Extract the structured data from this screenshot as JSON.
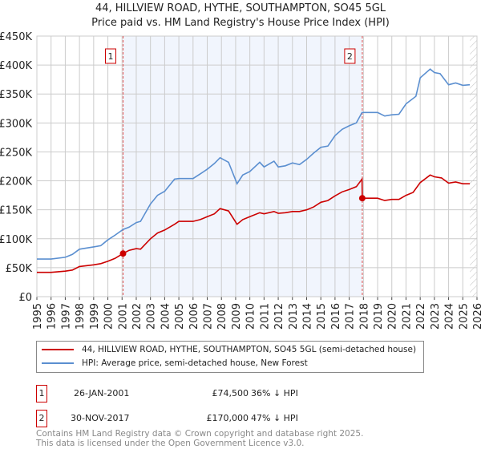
{
  "title_line1": "44, HILLVIEW ROAD, HYTHE, SOUTHAMPTON, SO45 5GL",
  "title_line2": "Price paid vs. HM Land Registry's House Price Index (HPI)",
  "chart_data": {
    "type": "line",
    "title": "44, HILLVIEW ROAD, HYTHE, SOUTHAMPTON, SO45 5GL — Price paid vs. HM Land Registry's House Price Index (HPI)",
    "xlim": [
      1995,
      2026
    ],
    "ylim": [
      0,
      450000
    ],
    "x_ticks": [
      "1995",
      "1996",
      "1997",
      "1998",
      "1999",
      "2000",
      "2001",
      "2002",
      "2003",
      "2004",
      "2005",
      "2006",
      "2007",
      "2008",
      "2009",
      "2010",
      "2011",
      "2012",
      "2013",
      "2014",
      "2015",
      "2016",
      "2017",
      "2018",
      "2019",
      "2020",
      "2021",
      "2022",
      "2023",
      "2024",
      "2025",
      "2026"
    ],
    "y_ticks": [
      {
        "v": 0,
        "label": "£0"
      },
      {
        "v": 50000,
        "label": "£50K"
      },
      {
        "v": 100000,
        "label": "£100K"
      },
      {
        "v": 150000,
        "label": "£150K"
      },
      {
        "v": 200000,
        "label": "£200K"
      },
      {
        "v": 250000,
        "label": "£250K"
      },
      {
        "v": 300000,
        "label": "£300K"
      },
      {
        "v": 350000,
        "label": "£350K"
      },
      {
        "v": 400000,
        "label": "£400K"
      },
      {
        "v": 450000,
        "label": "£450K"
      }
    ],
    "grid": true,
    "shaded_range": [
      2001.07,
      2017.92
    ],
    "forecast_hatch_from": 2025.5,
    "series": [
      {
        "name": "44, HILLVIEW ROAD, HYTHE, SOUTHAMPTON, SO45 5GL (semi-detached house)",
        "color": "#cc0000",
        "x": [
          1995,
          1996,
          1997,
          1997.5,
          1998,
          1999,
          1999.5,
          2000,
          2000.5,
          2001.07,
          2001.5,
          2002,
          2002.3,
          2003,
          2003.5,
          2004,
          2004.7,
          2005,
          2006,
          2006.5,
          2007,
          2007.5,
          2007.9,
          2008.5,
          2009.1,
          2009.5,
          2010,
          2010.7,
          2011,
          2011.7,
          2012,
          2012.5,
          2013,
          2013.5,
          2014,
          2014.5,
          2015,
          2015.5,
          2016,
          2016.5,
          2017,
          2017.5,
          2017.9,
          2017.92,
          2018,
          2019,
          2019.5,
          2020,
          2020.5,
          2021,
          2021.5,
          2022,
          2022.7,
          2023,
          2023.5,
          2024,
          2024.5,
          2025,
          2025.5
        ],
        "y": [
          42000,
          42000,
          44000,
          46000,
          52000,
          55000,
          57000,
          61000,
          66000,
          74500,
          80000,
          83000,
          82000,
          100000,
          110000,
          115000,
          125000,
          130000,
          130000,
          133000,
          138000,
          143000,
          152000,
          148000,
          125000,
          133000,
          138000,
          145000,
          143000,
          147000,
          144000,
          145000,
          147000,
          147000,
          150000,
          155000,
          163000,
          166000,
          174000,
          181000,
          185000,
          190000,
          203000,
          170000,
          170000,
          170000,
          166000,
          168000,
          168000,
          175000,
          180000,
          197000,
          210000,
          207000,
          205000,
          196000,
          198000,
          195000,
          195000
        ]
      },
      {
        "name": "HPI: Average price, semi-detached house, New Forest",
        "color": "#5b8fd0",
        "x": [
          1995,
          1996,
          1997,
          1997.5,
          1998,
          1999,
          1999.5,
          2000,
          2000.5,
          2001.07,
          2001.5,
          2002,
          2002.3,
          2003,
          2003.5,
          2004,
          2004.7,
          2005,
          2006,
          2006.5,
          2007,
          2007.5,
          2007.9,
          2008.5,
          2009.1,
          2009.5,
          2010,
          2010.7,
          2011,
          2011.7,
          2012,
          2012.5,
          2013,
          2013.5,
          2014,
          2014.5,
          2015,
          2015.5,
          2016,
          2016.5,
          2017,
          2017.5,
          2017.9,
          2018,
          2019,
          2019.5,
          2020,
          2020.5,
          2021,
          2021.7,
          2022,
          2022.7,
          2023,
          2023.4,
          2024,
          2024.5,
          2025,
          2025.5
        ],
        "y": [
          65000,
          65000,
          68000,
          73000,
          82000,
          86000,
          88000,
          98000,
          106000,
          116000,
          120000,
          128000,
          130000,
          160000,
          175000,
          182000,
          203000,
          204000,
          204000,
          212000,
          220000,
          230000,
          240000,
          232000,
          195000,
          210000,
          216000,
          232000,
          224000,
          234000,
          224000,
          226000,
          231000,
          228000,
          237000,
          248000,
          258000,
          260000,
          278000,
          289000,
          295000,
          300000,
          318000,
          318000,
          318000,
          312000,
          314000,
          315000,
          333000,
          346000,
          378000,
          393000,
          387000,
          385000,
          366000,
          369000,
          365000,
          366000
        ]
      }
    ],
    "annotations": [
      {
        "label": "1",
        "x": 2001.07,
        "y": 74500
      },
      {
        "label": "2",
        "x": 2017.92,
        "y": 170000
      }
    ]
  },
  "legend": {
    "property": "44, HILLVIEW ROAD, HYTHE, SOUTHAMPTON, SO45 5GL (semi-detached house)",
    "hpi": "HPI: Average price, semi-detached house, New Forest"
  },
  "sales": [
    {
      "num": "1",
      "date": "26-JAN-2001",
      "price": "£74,500",
      "delta": "36% ↓ HPI"
    },
    {
      "num": "2",
      "date": "30-NOV-2017",
      "price": "£170,000",
      "delta": "47% ↓ HPI"
    }
  ],
  "footer_line1": "Contains HM Land Registry data © Crown copyright and database right 2025.",
  "footer_line2": "This data is licensed under the Open Government Licence v3.0."
}
